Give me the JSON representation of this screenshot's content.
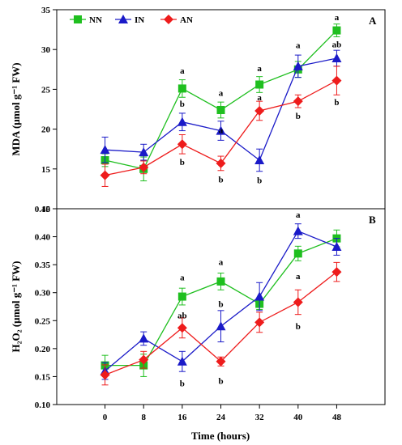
{
  "chart_data": {
    "type": "line",
    "x": [
      0,
      8,
      16,
      24,
      32,
      40,
      48
    ],
    "xlabel": "Time (hours)",
    "legend": [
      "NN",
      "IN",
      "AN"
    ],
    "colors": {
      "NN": "#1fbf1f",
      "IN": "#1a1ac8",
      "AN": "#ee1c1c"
    },
    "legend_position": "top-left",
    "panels": [
      {
        "panel_label": "A",
        "ylabel": "MDA (μmol g⁻¹ FW)",
        "ylim": [
          10,
          35
        ],
        "yticks": [
          "10",
          "15",
          "20",
          "25",
          "30",
          "35"
        ],
        "series": [
          {
            "name": "NN",
            "values": [
              16.1,
              15.0,
              25.1,
              22.4,
              25.6,
              27.5,
              32.4
            ],
            "errors": [
              0.8,
              1.5,
              1.1,
              1.0,
              1.0,
              1.0,
              0.8
            ]
          },
          {
            "name": "IN",
            "values": [
              17.4,
              17.1,
              20.9,
              19.8,
              16.1,
              27.9,
              28.9
            ],
            "errors": [
              1.6,
              1.0,
              1.1,
              1.2,
              1.4,
              1.4,
              1.0
            ]
          },
          {
            "name": "AN",
            "values": [
              14.2,
              15.2,
              18.1,
              15.7,
              22.3,
              23.5,
              26.1
            ],
            "errors": [
              1.4,
              0.8,
              1.2,
              0.9,
              1.2,
              0.8,
              1.8
            ]
          }
        ],
        "annotations": [
          {
            "x": 16,
            "label": "a",
            "y": 27.4
          },
          {
            "x": 16,
            "label": "b",
            "y": 23.2
          },
          {
            "x": 16,
            "label": "b",
            "y": 15.9
          },
          {
            "x": 24,
            "label": "a",
            "y": 24.6
          },
          {
            "x": 24,
            "label": "a",
            "y": 19.9
          },
          {
            "x": 24,
            "label": "b",
            "y": 13.7
          },
          {
            "x": 32,
            "label": "a",
            "y": 27.7
          },
          {
            "x": 32,
            "label": "a",
            "y": 24.0
          },
          {
            "x": 32,
            "label": "b",
            "y": 13.6
          },
          {
            "x": 40,
            "label": "a",
            "y": 30.6
          },
          {
            "x": 40,
            "label": "b",
            "y": 21.7
          },
          {
            "x": 48,
            "label": "a",
            "y": 34.1
          },
          {
            "x": 48,
            "label": "ab",
            "y": 30.7
          },
          {
            "x": 48,
            "label": "b",
            "y": 23.4
          }
        ]
      },
      {
        "panel_label": "B",
        "ylabel": "H₂O₂ (μmol g⁻¹ FW)",
        "ylim": [
          0.1,
          0.45
        ],
        "yticks": [
          "0.10",
          "0.15",
          "0.20",
          "0.25",
          "0.30",
          "0.35",
          "0.40",
          "0.45"
        ],
        "series": [
          {
            "name": "NN",
            "values": [
              0.17,
              0.17,
              0.293,
              0.32,
              0.28,
              0.37,
              0.397
            ],
            "errors": [
              0.018,
              0.02,
              0.015,
              0.015,
              0.01,
              0.013,
              0.015
            ]
          },
          {
            "name": "IN",
            "values": [
              0.16,
              0.218,
              0.177,
              0.24,
              0.293,
              0.41,
              0.382
            ],
            "errors": [
              0.015,
              0.012,
              0.018,
              0.028,
              0.025,
              0.013,
              0.015
            ]
          },
          {
            "name": "AN",
            "values": [
              0.153,
              0.18,
              0.237,
              0.177,
              0.247,
              0.283,
              0.337
            ],
            "errors": [
              0.018,
              0.015,
              0.018,
              0.008,
              0.018,
              0.022,
              0.017
            ]
          }
        ],
        "annotations": [
          {
            "x": 16,
            "label": "a",
            "y": 0.328
          },
          {
            "x": 16,
            "label": "ab",
            "y": 0.26
          },
          {
            "x": 16,
            "label": "b",
            "y": 0.138
          },
          {
            "x": 24,
            "label": "a",
            "y": 0.355
          },
          {
            "x": 24,
            "label": "b",
            "y": 0.28
          },
          {
            "x": 24,
            "label": "b",
            "y": 0.143
          },
          {
            "x": 40,
            "label": "a",
            "y": 0.44
          },
          {
            "x": 40,
            "label": "a",
            "y": 0.33
          },
          {
            "x": 40,
            "label": "b",
            "y": 0.24
          }
        ]
      }
    ]
  }
}
